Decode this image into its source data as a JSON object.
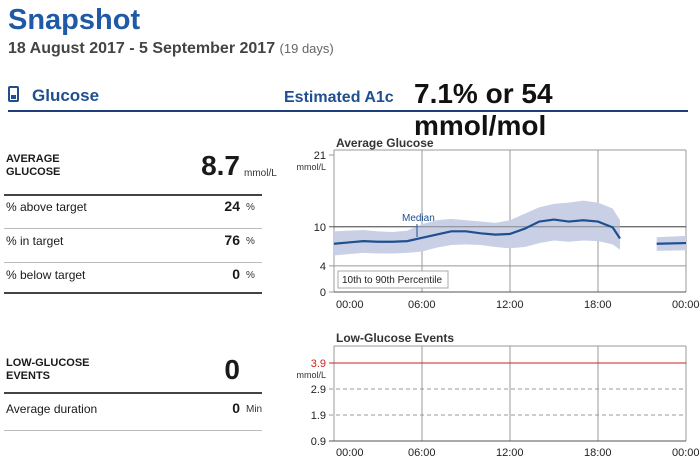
{
  "header": {
    "title": "Snapshot",
    "date_range": "18 August 2017 - 5 September 2017",
    "days": "(19 days)"
  },
  "section": {
    "device_icon": "device-icon",
    "label": "Glucose",
    "a1c_label": "Estimated A1c",
    "a1c_value": "7.1% or 54 mmol/mol"
  },
  "stats": {
    "average_glucose": {
      "label": "AVERAGE GLUCOSE",
      "value": "8.7",
      "unit": "mmol/L"
    },
    "above": {
      "label": "% above target",
      "value": "24",
      "unit": "%"
    },
    "in": {
      "label": "% in target",
      "value": "76",
      "unit": "%"
    },
    "below": {
      "label": "% below target",
      "value": "0",
      "unit": "%"
    }
  },
  "low_events": {
    "events": {
      "label": "LOW-GLUCOSE EVENTS",
      "value": "0"
    },
    "duration": {
      "label": "Average duration",
      "value": "0",
      "unit": "Min"
    }
  },
  "colors": {
    "accent": "#1f5aa6",
    "median": "#1f4f8f",
    "band": "#c9d0e6",
    "low": "#cc2222"
  },
  "chart_data": [
    {
      "type": "area",
      "title": "Average Glucose",
      "ylabel": "mmol/L",
      "y_ticks": [
        0,
        4,
        10,
        21
      ],
      "ylim": [
        0,
        21
      ],
      "x_ticks": [
        "00:00",
        "06:00",
        "12:00",
        "18:00",
        "00:00"
      ],
      "grid": true,
      "median_label": "Median",
      "band_label": "10th to 90th Percentile",
      "series": [
        {
          "name": "Median",
          "x": [
            0,
            1,
            2,
            3,
            4,
            5,
            6,
            7,
            8,
            9,
            10,
            11,
            12,
            13,
            14,
            15,
            16,
            17,
            18,
            19,
            19.5
          ],
          "values": [
            7.4,
            7.6,
            7.8,
            7.7,
            7.7,
            7.8,
            8.3,
            8.8,
            9.3,
            9.3,
            9.0,
            8.8,
            8.9,
            9.7,
            10.8,
            11.1,
            10.8,
            11.0,
            10.8,
            9.9,
            8.2
          ]
        },
        {
          "name": "Median (late)",
          "x": [
            22,
            24
          ],
          "values": [
            7.4,
            7.5
          ]
        }
      ],
      "band": {
        "x": [
          0,
          1,
          2,
          3,
          4,
          5,
          6,
          7,
          8,
          9,
          10,
          11,
          12,
          13,
          14,
          15,
          16,
          17,
          18,
          19,
          19.5
        ],
        "p10": [
          5.6,
          5.8,
          6.0,
          5.9,
          5.9,
          6.0,
          6.2,
          6.8,
          7.2,
          7.3,
          7.2,
          6.9,
          6.7,
          6.9,
          7.5,
          7.9,
          7.7,
          7.9,
          7.8,
          7.3,
          6.5
        ],
        "p90": [
          9.3,
          9.4,
          9.5,
          9.3,
          9.2,
          9.4,
          10.4,
          11.0,
          11.2,
          11.0,
          10.8,
          10.6,
          11.0,
          12.0,
          13.0,
          13.5,
          13.7,
          14.0,
          13.7,
          12.8,
          11.0
        ]
      },
      "band_late": {
        "x": [
          22,
          24
        ],
        "p10": [
          6.3,
          6.4
        ],
        "p90": [
          8.4,
          8.6
        ]
      }
    },
    {
      "type": "scatter",
      "title": "Low-Glucose Events",
      "ylabel": "mmol/L",
      "y_ticks": [
        "3.9",
        "2.9",
        "1.9",
        "0.9"
      ],
      "x_ticks": [
        "00:00",
        "06:00",
        "12:00",
        "18:00",
        "00:00"
      ],
      "grid": true,
      "values": []
    }
  ]
}
